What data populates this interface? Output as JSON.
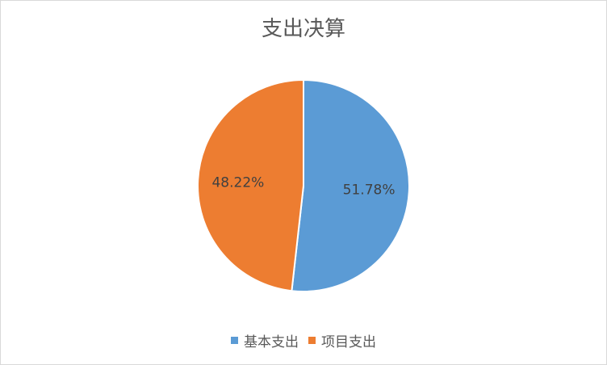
{
  "chart_data": {
    "type": "pie",
    "title": "支出决算",
    "categories": [
      "基本支出",
      "项目支出"
    ],
    "values": [
      51.78,
      48.22
    ],
    "data_labels": [
      "51.78%",
      "48.22%"
    ],
    "colors": [
      "#5B9BD5",
      "#ED7D31"
    ],
    "legend_position": "bottom"
  }
}
